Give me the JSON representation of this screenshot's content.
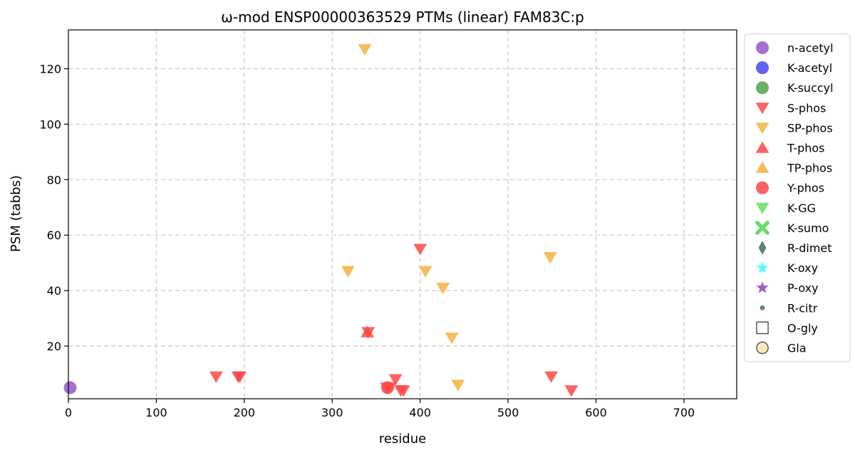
{
  "chart_data": {
    "type": "scatter",
    "title": "ω-mod ENSP00000363529 PTMs (linear) FAM83C:p",
    "xlabel": "residue",
    "ylabel": "PSM (tabbs)",
    "xlim": [
      0,
      760
    ],
    "ylim": [
      1,
      134
    ],
    "xticks": [
      "0",
      "100",
      "200",
      "300",
      "400",
      "500",
      "600",
      "700"
    ],
    "yticks": [
      "20",
      "40",
      "60",
      "80",
      "100",
      "120"
    ],
    "grid": true,
    "legend_position": "outside-right",
    "legend": [
      {
        "label": "n-acetyl",
        "marker": "circle",
        "color": "#9457c7"
      },
      {
        "label": "K-acetyl",
        "marker": "circle",
        "color": "#4747f4"
      },
      {
        "label": "K-succyl",
        "marker": "circle",
        "color": "#4ca24c"
      },
      {
        "label": "S-phos",
        "marker": "triangle-down",
        "color": "#ff4747"
      },
      {
        "label": "SP-phos",
        "marker": "triangle-down",
        "color": "#f5b041"
      },
      {
        "label": "T-phos",
        "marker": "triangle-up",
        "color": "#ff4747"
      },
      {
        "label": "TP-phos",
        "marker": "triangle-up",
        "color": "#f5b041"
      },
      {
        "label": "Y-phos",
        "marker": "circle",
        "color": "#ff4747"
      },
      {
        "label": "K-GG",
        "marker": "triangle-down",
        "color": "#66dd66"
      },
      {
        "label": "K-sumo",
        "marker": "x",
        "color": "#66dd66"
      },
      {
        "label": "R-dimet",
        "marker": "diamond",
        "color": "#3f6f55"
      },
      {
        "label": "K-oxy",
        "marker": "star",
        "color": "#33ffff"
      },
      {
        "label": "P-oxy",
        "marker": "star",
        "color": "#8844bb"
      },
      {
        "label": "R-citr",
        "marker": "dot",
        "color": "#3f6f55"
      },
      {
        "label": "O-gly",
        "marker": "square-open",
        "color": "#555555"
      },
      {
        "label": "Gla",
        "marker": "circle-open",
        "color": "#f8e8a8"
      }
    ],
    "series": [
      {
        "type": "n-acetyl",
        "points": [
          [
            2,
            5
          ]
        ]
      },
      {
        "type": "S-phos",
        "points": [
          [
            168,
            9
          ],
          [
            193,
            9
          ],
          [
            195,
            9
          ],
          [
            341,
            25
          ],
          [
            362,
            5
          ],
          [
            365,
            5
          ],
          [
            372,
            8
          ],
          [
            378,
            4
          ],
          [
            381,
            4
          ],
          [
            400,
            55
          ],
          [
            549,
            9
          ],
          [
            572,
            4
          ]
        ]
      },
      {
        "type": "SP-phos",
        "points": [
          [
            318,
            47
          ],
          [
            337,
            127
          ],
          [
            406,
            47
          ],
          [
            426,
            41
          ],
          [
            436,
            23
          ],
          [
            443,
            6
          ],
          [
            548,
            52
          ]
        ]
      },
      {
        "type": "T-phos",
        "points": [
          [
            340,
            25
          ]
        ]
      },
      {
        "type": "Y-phos",
        "points": [
          [
            363,
            5
          ]
        ]
      }
    ]
  }
}
